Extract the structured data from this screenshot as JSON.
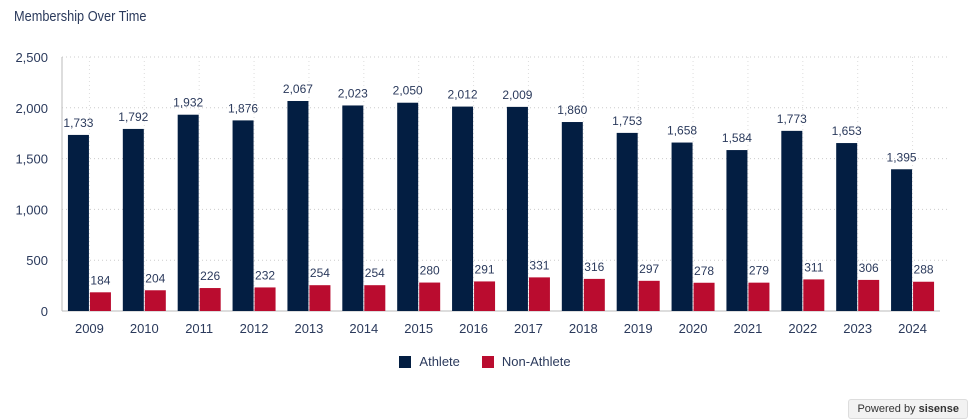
{
  "chart_data": {
    "type": "bar",
    "title": "Membership Over Time",
    "xlabel": "",
    "ylabel": "",
    "ylim": [
      0,
      2500
    ],
    "yticks": [
      "0",
      "500",
      "1,000",
      "1,500",
      "2,000",
      "2,500"
    ],
    "grid": true,
    "legend_position": "bottom",
    "categories": [
      "2009",
      "2010",
      "2011",
      "2012",
      "2013",
      "2014",
      "2015",
      "2016",
      "2017",
      "2018",
      "2019",
      "2020",
      "2021",
      "2022",
      "2023",
      "2024"
    ],
    "series": [
      {
        "name": "Athlete",
        "color": "#031e42",
        "values": [
          1733,
          1792,
          1932,
          1876,
          2067,
          2023,
          2050,
          2012,
          2009,
          1860,
          1753,
          1658,
          1584,
          1773,
          1653,
          1395
        ]
      },
      {
        "name": "Non-Athlete",
        "color": "#ba0c2f",
        "values": [
          184,
          204,
          226,
          232,
          254,
          254,
          280,
          291,
          331,
          316,
          297,
          278,
          279,
          311,
          306,
          288
        ]
      }
    ]
  },
  "footer": {
    "powered_by": "Powered by",
    "brand": "sisense"
  }
}
